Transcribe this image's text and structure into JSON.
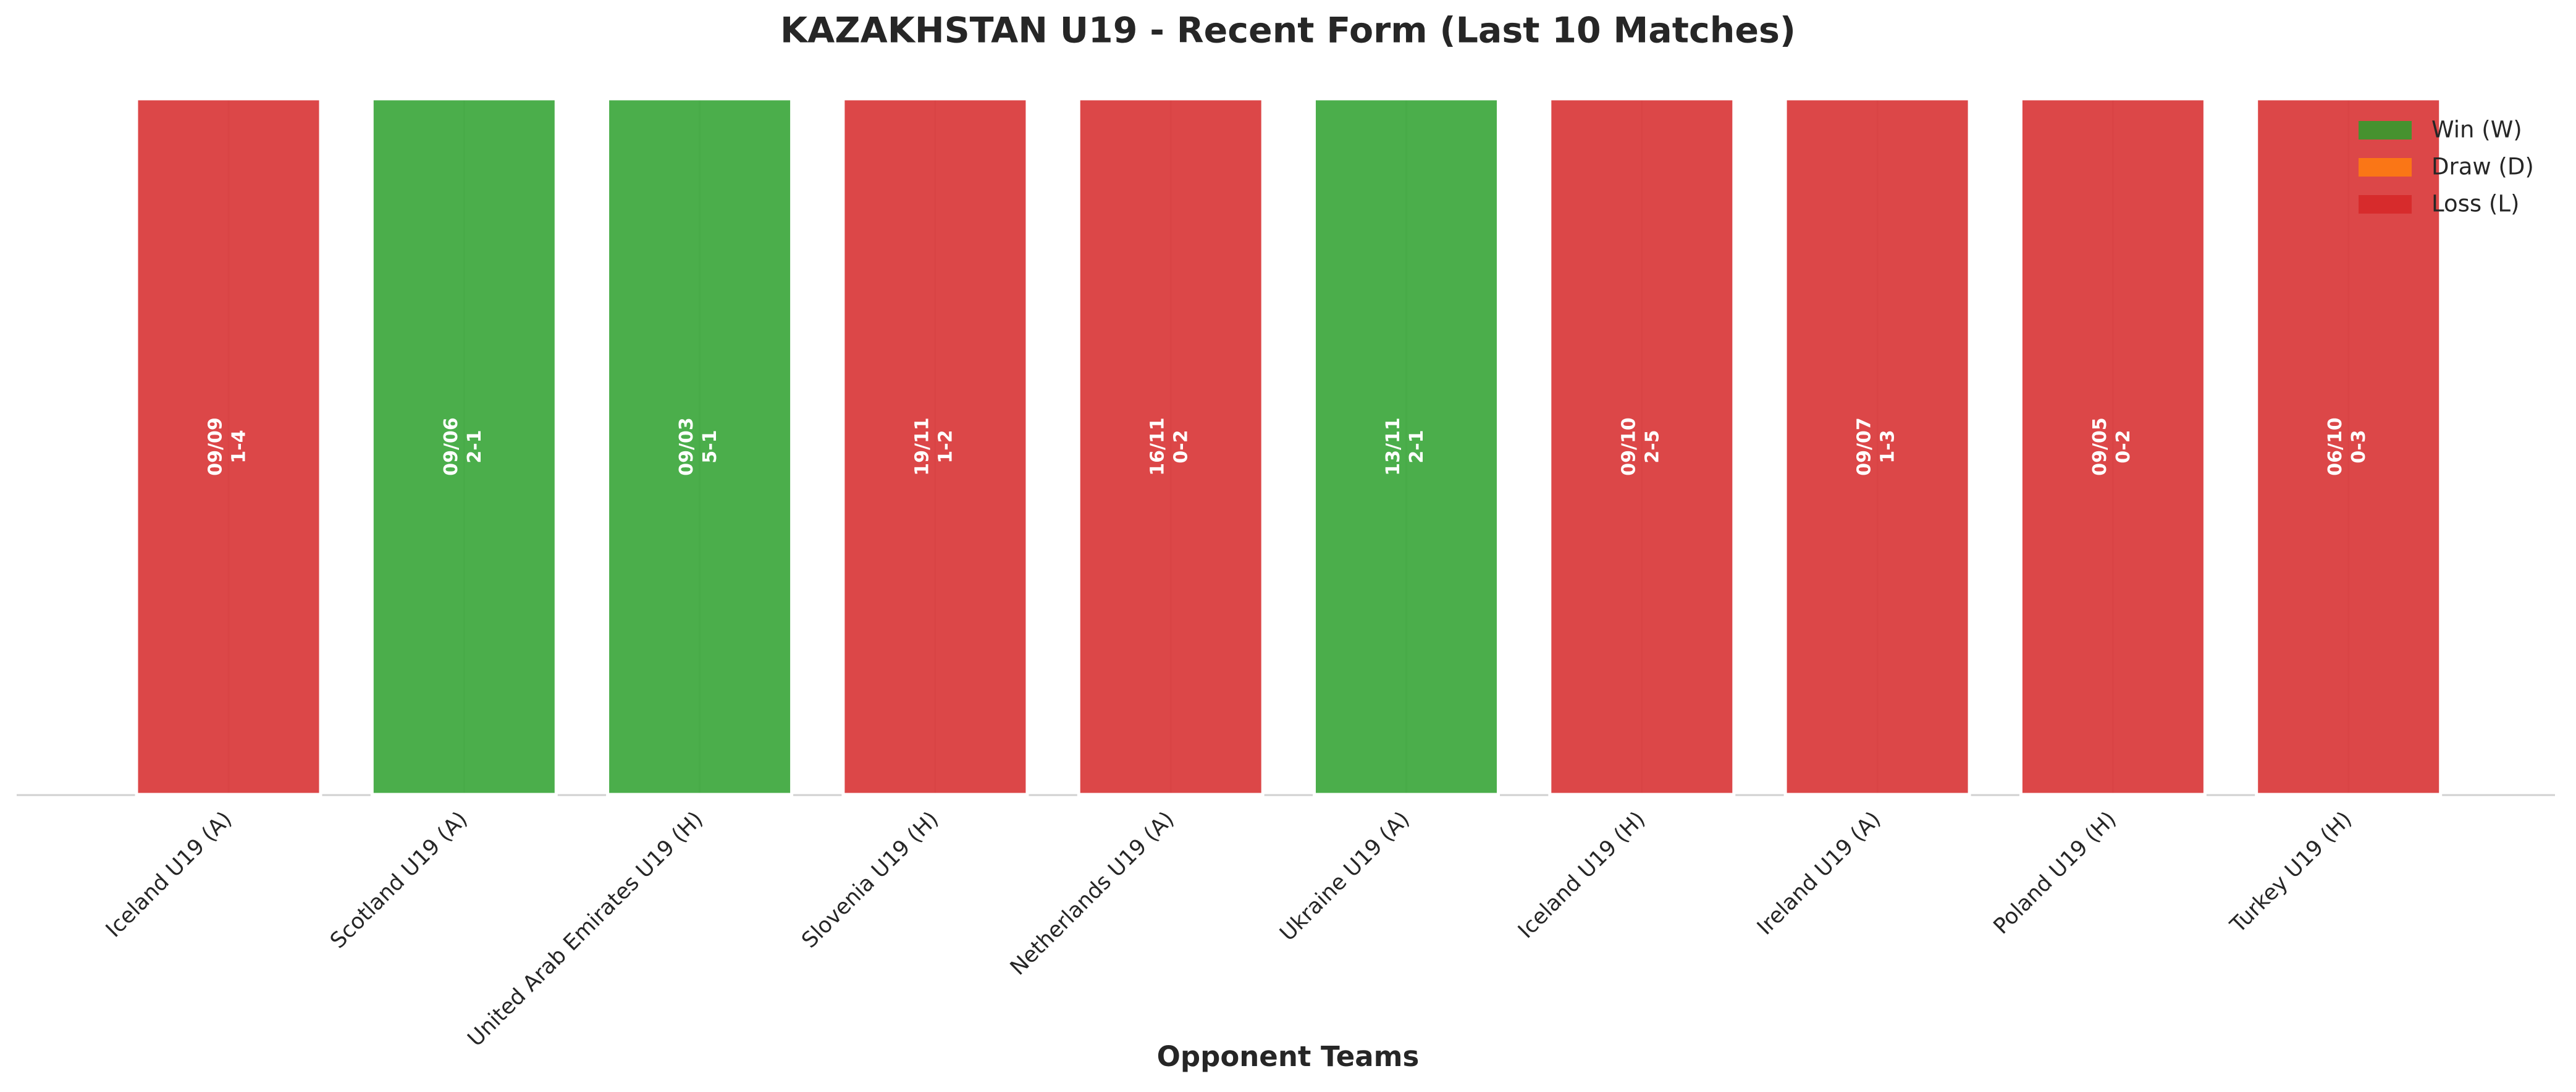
{
  "chart_data": {
    "type": "bar",
    "title": "KAZAKHSTAN U19 - Recent Form (Last 10 Matches)",
    "xlabel": "Opponent Teams",
    "categories": [
      "Iceland U19 (A)",
      "Scotland U19 (A)",
      "United Arab Emirates U19 (H)",
      "Slovenia U19 (H)",
      "Netherlands U19 (A)",
      "Ukraine U19 (A)",
      "Iceland U19 (H)",
      "Ireland U19 (A)",
      "Poland U19 (H)",
      "Turkey U19 (H)"
    ],
    "values": [
      1,
      1,
      1,
      1,
      1,
      1,
      1,
      1,
      1,
      1
    ],
    "dates": [
      "09/09",
      "09/06",
      "09/03",
      "19/11",
      "16/11",
      "13/11",
      "09/10",
      "09/07",
      "09/05",
      "06/10"
    ],
    "scores": [
      "1-4",
      "2-1",
      "5-1",
      "1-2",
      "0-2",
      "2-1",
      "2-5",
      "1-3",
      "0-2",
      "0-3"
    ],
    "colors": [
      "#d62728",
      "#2ca02c",
      "#2ca02c",
      "#d62728",
      "#d62728",
      "#2ca02c",
      "#d62728",
      "#d62728",
      "#d62728",
      "#d62728"
    ],
    "ylim": [
      0,
      1
    ],
    "grid": true,
    "legend_position": "upper right",
    "legend": [
      {
        "name": "Win (W)",
        "color": "#2ca02c"
      },
      {
        "name": "Draw (D)",
        "color": "#ff7f0e"
      },
      {
        "name": "Loss (L)",
        "color": "#d62728"
      }
    ]
  }
}
